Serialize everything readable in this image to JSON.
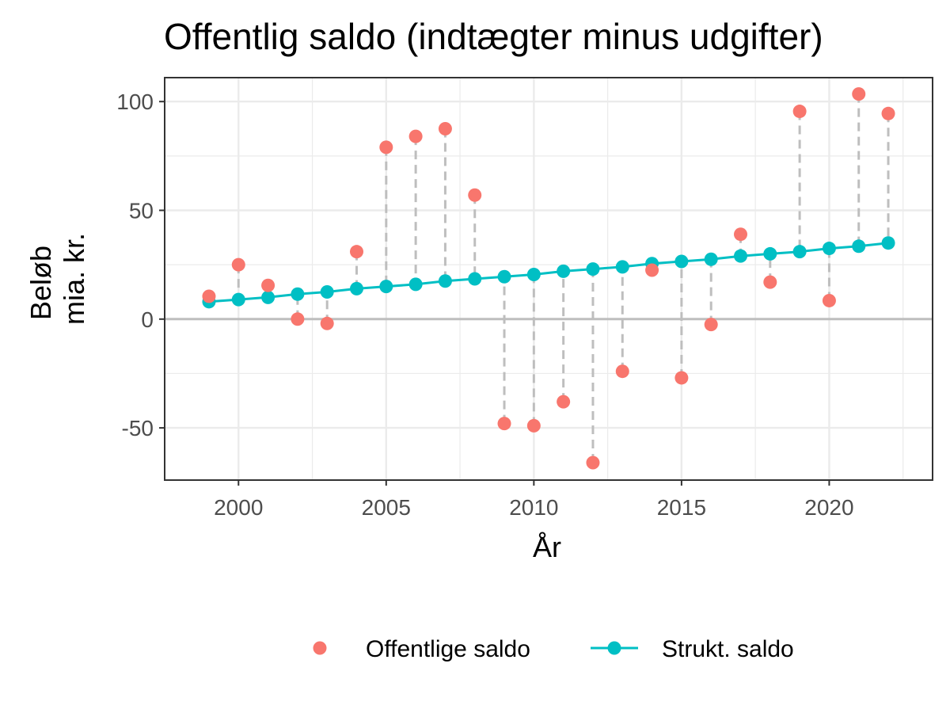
{
  "chart_data": {
    "type": "scatter",
    "title": "Offentlig saldo (indtægter minus udgifter)",
    "xlabel": "År",
    "ylabel_lines": [
      "Beløb",
      "mia. kr."
    ],
    "xlim": [
      1997.5,
      2023.5
    ],
    "ylim": [
      -74,
      111
    ],
    "x_ticks": [
      2000,
      2005,
      2010,
      2015,
      2020
    ],
    "x_tick_labels": [
      "2000",
      "2005",
      "2010",
      "2015",
      "2020"
    ],
    "y_ticks": [
      -50,
      0,
      50,
      100
    ],
    "y_tick_labels": [
      "-50",
      "0",
      "50",
      "100"
    ],
    "grid": true,
    "zero_line": true,
    "legend_position": "bottom",
    "x": [
      1999,
      2000,
      2001,
      2002,
      2003,
      2004,
      2005,
      2006,
      2007,
      2008,
      2009,
      2010,
      2011,
      2012,
      2013,
      2014,
      2015,
      2016,
      2017,
      2018,
      2019,
      2020,
      2021,
      2022
    ],
    "series": [
      {
        "name": "Offentlige saldo",
        "kind": "points",
        "color": "#F8766D",
        "values": [
          10.5,
          25,
          15.5,
          0,
          -2,
          31,
          79,
          84,
          87.5,
          57,
          -48,
          -49,
          -38,
          -66,
          -24,
          22.5,
          -27,
          -2.5,
          39,
          17,
          95.5,
          8.5,
          103.5,
          94.5
        ]
      },
      {
        "name": "Strukt. saldo",
        "kind": "line+points",
        "color": "#00BFC4",
        "values": [
          8,
          9,
          10,
          11.5,
          12.5,
          14,
          15,
          16,
          17.5,
          18.5,
          19.5,
          20.5,
          22,
          23,
          24,
          25.5,
          26.5,
          27.5,
          29,
          30,
          31,
          32.5,
          33.5,
          35
        ]
      }
    ],
    "connectors": {
      "style": "dashed",
      "color": "#BEBEBE"
    }
  }
}
